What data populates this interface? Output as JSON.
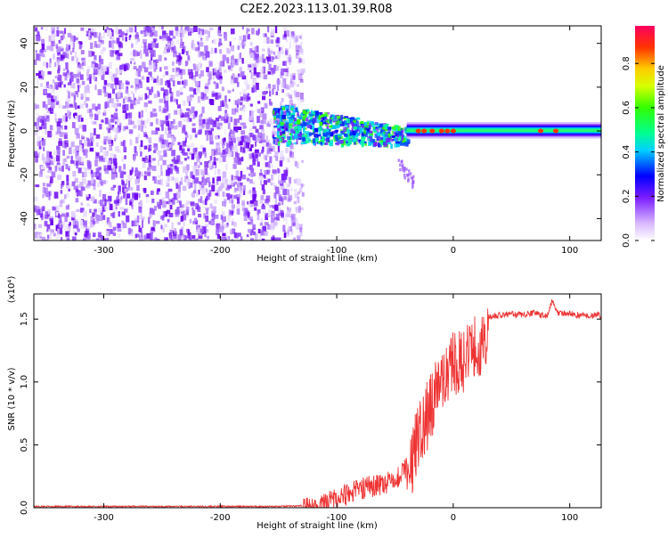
{
  "title": "C2E2.2023.113.01.39.R08",
  "chart_data": [
    {
      "type": "heatmap",
      "xlabel": "Height of straight line (km)",
      "ylabel": "Frequency (Hz)",
      "xlim": [
        -360,
        127
      ],
      "ylim": [
        -50,
        48
      ],
      "xticks": [
        -300,
        -200,
        -100,
        0,
        100
      ],
      "yticks": [
        -40,
        -20,
        0,
        20,
        40
      ],
      "colorbar": {
        "label": "Normalized spectral amplitude",
        "range": [
          0.0,
          0.97
        ],
        "ticks": [
          0.0,
          0.2,
          0.4,
          0.6,
          0.8
        ]
      },
      "regions": [
        {
          "name": "noise",
          "x": [
            -360,
            -130
          ],
          "y": [
            -50,
            48
          ],
          "level": 0.15
        },
        {
          "name": "transition",
          "x": [
            -155,
            -40
          ],
          "y": [
            -10,
            12
          ],
          "level": 0.45
        },
        {
          "name": "carrier",
          "x": [
            -40,
            127
          ],
          "y": [
            -3,
            3
          ],
          "level": 0.55
        }
      ],
      "grid": false
    },
    {
      "type": "line",
      "xlabel": "Height of straight line (km)",
      "ylabel": "SNR (10 * v/v)",
      "y_multiplier": "(x10⁴)",
      "xlim": [
        -360,
        127
      ],
      "ylim": [
        0,
        1.7
      ],
      "xticks": [
        -300,
        -200,
        -100,
        0,
        100
      ],
      "yticks": [
        0.0,
        0.5,
        1.0,
        1.5
      ],
      "series": [
        {
          "color": "#ee3333",
          "x": [
            -360,
            -300,
            -200,
            -150,
            -130,
            -120,
            -110,
            -100,
            -90,
            -80,
            -70,
            -60,
            -50,
            -40,
            -35,
            -30,
            -25,
            -20,
            -15,
            -10,
            -5,
            0,
            5,
            10,
            15,
            20,
            25,
            30,
            40,
            50,
            60,
            70,
            80,
            85,
            90,
            100,
            110,
            127
          ],
          "y": [
            0.01,
            0.01,
            0.01,
            0.01,
            0.015,
            0.03,
            0.06,
            0.1,
            0.14,
            0.18,
            0.2,
            0.22,
            0.25,
            0.35,
            0.55,
            0.75,
            0.85,
            0.95,
            1.1,
            1.2,
            1.25,
            1.3,
            1.32,
            1.35,
            1.4,
            1.45,
            1.48,
            1.52,
            1.53,
            1.54,
            1.53,
            1.55,
            1.52,
            1.65,
            1.55,
            1.54,
            1.53,
            1.53
          ]
        }
      ],
      "grid": false
    }
  ]
}
